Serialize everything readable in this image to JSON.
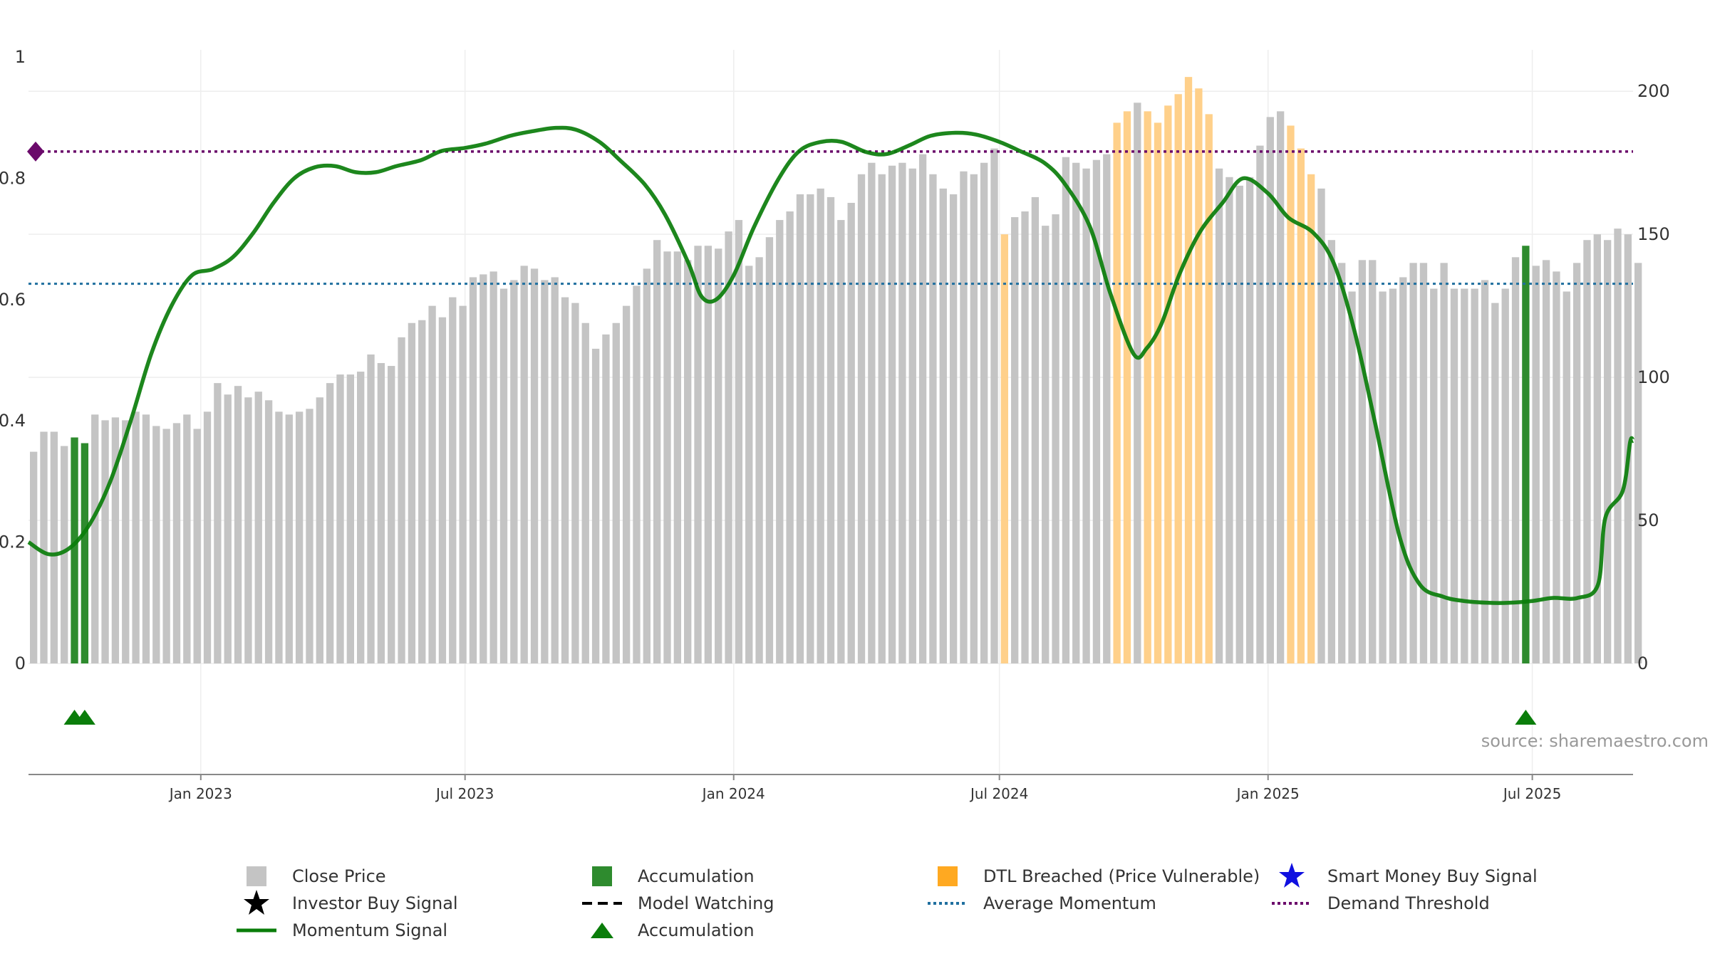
{
  "chart_data": {
    "type": "bar",
    "source_note": "source: sharemaestro.com",
    "left_axis": {
      "ylim": [
        0,
        1
      ],
      "ticks": [
        0,
        0.2,
        0.4,
        0.6,
        0.8,
        1
      ],
      "tick_labels": [
        "0",
        "0.2",
        "0.4",
        "0.6",
        "0.8",
        "1"
      ]
    },
    "right_axis": {
      "ylim": [
        0,
        212
      ],
      "ticks": [
        0,
        50,
        100,
        150,
        200
      ],
      "tick_labels": [
        "0",
        "50",
        "100",
        "150",
        "200"
      ]
    },
    "x_axis": {
      "start": "2022-09-05",
      "end": "2025-09-08",
      "ticks": [
        {
          "date": "2023-01-01",
          "label": "Jan 2023"
        },
        {
          "date": "2023-07-01",
          "label": "Jul 2023"
        },
        {
          "date": "2024-01-01",
          "label": "Jan 2024"
        },
        {
          "date": "2024-07-01",
          "label": "Jul 2024"
        },
        {
          "date": "2025-01-01",
          "label": "Jan 2025"
        },
        {
          "date": "2025-07-01",
          "label": "Jul 2025"
        }
      ]
    },
    "bars": {
      "start_date": "2022-09-05",
      "interval_days": 7,
      "close_price": [
        74,
        81,
        81,
        76,
        78,
        76,
        87,
        85,
        86,
        85,
        88,
        87,
        83,
        82,
        84,
        87,
        82,
        88,
        98,
        94,
        97,
        93,
        95,
        92,
        88,
        87,
        88,
        89,
        93,
        98,
        101,
        101,
        102,
        108,
        105,
        104,
        114,
        119,
        120,
        125,
        121,
        128,
        125,
        135,
        136,
        137,
        131,
        134,
        139,
        138,
        134,
        135,
        128,
        126,
        119,
        110,
        115,
        119,
        125,
        132,
        138,
        148,
        144,
        144,
        141,
        146,
        146,
        145,
        151,
        155,
        139,
        142,
        149,
        155,
        158,
        164,
        164,
        166,
        163,
        155,
        161,
        171,
        175,
        171,
        174,
        175,
        173,
        178,
        171,
        166,
        164,
        172,
        171,
        175,
        180,
        150,
        156,
        158,
        163,
        153,
        157,
        177,
        175,
        173,
        176,
        178,
        189,
        193,
        196,
        193,
        189,
        195,
        199,
        205,
        201,
        192,
        173,
        170,
        167,
        170,
        181,
        191,
        193,
        188,
        180,
        171,
        166,
        148,
        140,
        130,
        141,
        141,
        130,
        131,
        135,
        140,
        140,
        131,
        140,
        131,
        131,
        131,
        134,
        126,
        131,
        142,
        146,
        139,
        141,
        137,
        130,
        140,
        148,
        150,
        148,
        152,
        150,
        140
      ],
      "category": [
        "p",
        "p",
        "p",
        "p",
        "a",
        "a",
        "p",
        "p",
        "p",
        "p",
        "p",
        "p",
        "p",
        "p",
        "p",
        "p",
        "p",
        "p",
        "p",
        "p",
        "p",
        "p",
        "p",
        "p",
        "p",
        "p",
        "p",
        "p",
        "p",
        "p",
        "p",
        "p",
        "p",
        "p",
        "p",
        "p",
        "p",
        "p",
        "p",
        "p",
        "p",
        "p",
        "p",
        "p",
        "p",
        "p",
        "p",
        "p",
        "p",
        "p",
        "p",
        "p",
        "p",
        "p",
        "p",
        "p",
        "p",
        "p",
        "p",
        "p",
        "p",
        "p",
        "p",
        "p",
        "p",
        "p",
        "p",
        "p",
        "p",
        "p",
        "p",
        "p",
        "p",
        "p",
        "p",
        "p",
        "p",
        "p",
        "p",
        "p",
        "p",
        "p",
        "p",
        "p",
        "p",
        "p",
        "p",
        "p",
        "p",
        "p",
        "p",
        "p",
        "p",
        "p",
        "p",
        "d",
        "p",
        "p",
        "p",
        "p",
        "p",
        "p",
        "p",
        "p",
        "p",
        "p",
        "d",
        "d",
        "p",
        "d",
        "d",
        "d",
        "d",
        "d",
        "d",
        "d",
        "p",
        "p",
        "p",
        "p",
        "p",
        "p",
        "p",
        "d",
        "d",
        "d",
        "p",
        "p",
        "p",
        "p",
        "p",
        "p",
        "p",
        "p",
        "p",
        "p",
        "p",
        "p",
        "p",
        "p",
        "p",
        "p",
        "p",
        "p",
        "p",
        "p",
        "a",
        "p",
        "p",
        "p",
        "p",
        "p",
        "p",
        "p",
        "p",
        "p",
        "p",
        "p"
      ],
      "accumulation_heights": [
        {
          "index": 4,
          "value": 79
        },
        {
          "index": 5,
          "value": 77
        },
        {
          "index": 143,
          "value": 136
        }
      ]
    },
    "momentum_signal": {
      "axis": "left",
      "points": [
        [
          "2022-09-05",
          0.2
        ],
        [
          "2022-09-19",
          0.18
        ],
        [
          "2022-10-03",
          0.19
        ],
        [
          "2022-10-17",
          0.23
        ],
        [
          "2022-10-31",
          0.3
        ],
        [
          "2022-11-14",
          0.4
        ],
        [
          "2022-11-28",
          0.51
        ],
        [
          "2022-12-12",
          0.59
        ],
        [
          "2022-12-26",
          0.64
        ],
        [
          "2023-01-09",
          0.65
        ],
        [
          "2023-01-23",
          0.67
        ],
        [
          "2023-02-06",
          0.71
        ],
        [
          "2023-02-20",
          0.76
        ],
        [
          "2023-03-06",
          0.8
        ],
        [
          "2023-03-20",
          0.818
        ],
        [
          "2023-04-03",
          0.82
        ],
        [
          "2023-04-17",
          0.81
        ],
        [
          "2023-05-01",
          0.81
        ],
        [
          "2023-05-15",
          0.82
        ],
        [
          "2023-06-01",
          0.83
        ],
        [
          "2023-06-15",
          0.845
        ],
        [
          "2023-07-01",
          0.85
        ],
        [
          "2023-07-15",
          0.857
        ],
        [
          "2023-08-01",
          0.87
        ],
        [
          "2023-08-15",
          0.877
        ],
        [
          "2023-09-01",
          0.883
        ],
        [
          "2023-09-15",
          0.88
        ],
        [
          "2023-10-01",
          0.86
        ],
        [
          "2023-10-15",
          0.83
        ],
        [
          "2023-11-01",
          0.79
        ],
        [
          "2023-11-15",
          0.74
        ],
        [
          "2023-12-01",
          0.66
        ],
        [
          "2023-12-10",
          0.605
        ],
        [
          "2023-12-20",
          0.6
        ],
        [
          "2024-01-01",
          0.64
        ],
        [
          "2024-01-15",
          0.72
        ],
        [
          "2024-02-01",
          0.8
        ],
        [
          "2024-02-15",
          0.845
        ],
        [
          "2024-03-01",
          0.86
        ],
        [
          "2024-03-15",
          0.86
        ],
        [
          "2024-04-01",
          0.843
        ],
        [
          "2024-04-15",
          0.84
        ],
        [
          "2024-05-01",
          0.855
        ],
        [
          "2024-05-15",
          0.87
        ],
        [
          "2024-06-01",
          0.875
        ],
        [
          "2024-06-15",
          0.872
        ],
        [
          "2024-07-01",
          0.86
        ],
        [
          "2024-07-15",
          0.845
        ],
        [
          "2024-08-01",
          0.825
        ],
        [
          "2024-08-15",
          0.79
        ],
        [
          "2024-09-01",
          0.72
        ],
        [
          "2024-09-15",
          0.61
        ],
        [
          "2024-10-01",
          0.51
        ],
        [
          "2024-10-10",
          0.52
        ],
        [
          "2024-10-20",
          0.56
        ],
        [
          "2024-11-01",
          0.64
        ],
        [
          "2024-11-15",
          0.71
        ],
        [
          "2024-12-01",
          0.76
        ],
        [
          "2024-12-15",
          0.8
        ],
        [
          "2025-01-01",
          0.775
        ],
        [
          "2025-01-15",
          0.735
        ],
        [
          "2025-02-01",
          0.71
        ],
        [
          "2025-02-15",
          0.66
        ],
        [
          "2025-03-01",
          0.55
        ],
        [
          "2025-03-15",
          0.4
        ],
        [
          "2025-04-01",
          0.21
        ],
        [
          "2025-04-15",
          0.13
        ],
        [
          "2025-05-01",
          0.11
        ],
        [
          "2025-05-15",
          0.103
        ],
        [
          "2025-06-01",
          0.1
        ],
        [
          "2025-06-15",
          0.1
        ],
        [
          "2025-07-01",
          0.103
        ],
        [
          "2025-07-15",
          0.108
        ],
        [
          "2025-08-01",
          0.108
        ],
        [
          "2025-08-15",
          0.13
        ],
        [
          "2025-08-20",
          0.24
        ],
        [
          "2025-09-01",
          0.285
        ],
        [
          "2025-09-06",
          0.365
        ],
        [
          "2025-09-08",
          0.367
        ]
      ]
    },
    "average_momentum": {
      "axis": "left",
      "value": 0.626
    },
    "demand_threshold": {
      "axis": "left",
      "value": 0.844
    },
    "accumulation_markers": [
      "2022-10-03",
      "2022-10-10",
      "2025-06-23"
    ],
    "legend": [
      {
        "label": "Close Price",
        "symbol": "gray-square-icon"
      },
      {
        "label": "Accumulation",
        "symbol": "green-square-icon"
      },
      {
        "label": "DTL Breached (Price Vulnerable)",
        "symbol": "orange-square-icon"
      },
      {
        "label": "Smart Money Buy Signal",
        "symbol": "blue-star-icon"
      },
      {
        "label": "Investor Buy Signal",
        "symbol": "black-star-icon"
      },
      {
        "label": "Model Watching",
        "symbol": "black-dash-line-icon"
      },
      {
        "label": "Average Momentum",
        "symbol": "blue-dotted-line-icon"
      },
      {
        "label": "Demand Threshold",
        "symbol": "purple-dotted-line-icon"
      },
      {
        "label": "Momentum Signal",
        "symbol": "green-line-icon"
      },
      {
        "label": "Accumulation",
        "symbol": "green-triangle-icon"
      }
    ],
    "colors": {
      "close_price": "#c4c4c4",
      "accumulation": "#2e8b2e",
      "dtl_breached": "#ffd08a",
      "momentum": "#0a7d0a",
      "average_momentum": "#1f6f9f",
      "demand_threshold": "#6b0a6b",
      "smart_money": "#1010e0",
      "investor": "#000000",
      "grid": "#eeeeee",
      "axis_text": "#333333",
      "source_text": "#999999"
    }
  }
}
